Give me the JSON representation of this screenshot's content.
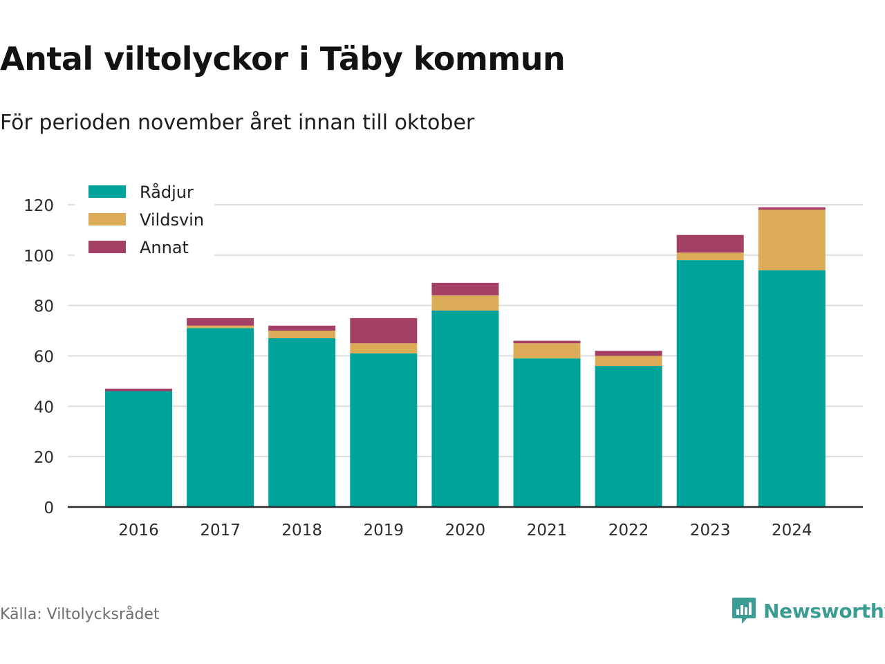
{
  "title": "Antal viltolyckor i Täby kommun",
  "subtitle": "För perioden november året innan till oktober",
  "source": "Källa: Viltolycksrådet",
  "brand": {
    "name": "Newsworthy",
    "icon": "bar-chart-speech-bubble-icon"
  },
  "colors": {
    "series": [
      "#00a39a",
      "#dcac58",
      "#a43f65"
    ],
    "grid": "#dcdcdc",
    "axis": "#2b2b2b",
    "tick_text": "#2b2b2b",
    "brand": "#3a9c92"
  },
  "chart_data": {
    "type": "bar",
    "stacked": true,
    "categories": [
      "2016",
      "2017",
      "2018",
      "2019",
      "2020",
      "2021",
      "2022",
      "2023",
      "2024"
    ],
    "series": [
      {
        "name": "Rådjur",
        "values": [
          46,
          71,
          67,
          61,
          78,
          59,
          56,
          98,
          94
        ]
      },
      {
        "name": "Vildsvin",
        "values": [
          0,
          1,
          3,
          4,
          6,
          6,
          4,
          3,
          24
        ]
      },
      {
        "name": "Annat",
        "values": [
          1,
          3,
          2,
          10,
          5,
          1,
          2,
          7,
          1
        ]
      }
    ],
    "ylim": [
      0,
      120
    ],
    "yticks": [
      0,
      20,
      40,
      60,
      80,
      100,
      120
    ],
    "grid": true,
    "legend": "top-left"
  }
}
